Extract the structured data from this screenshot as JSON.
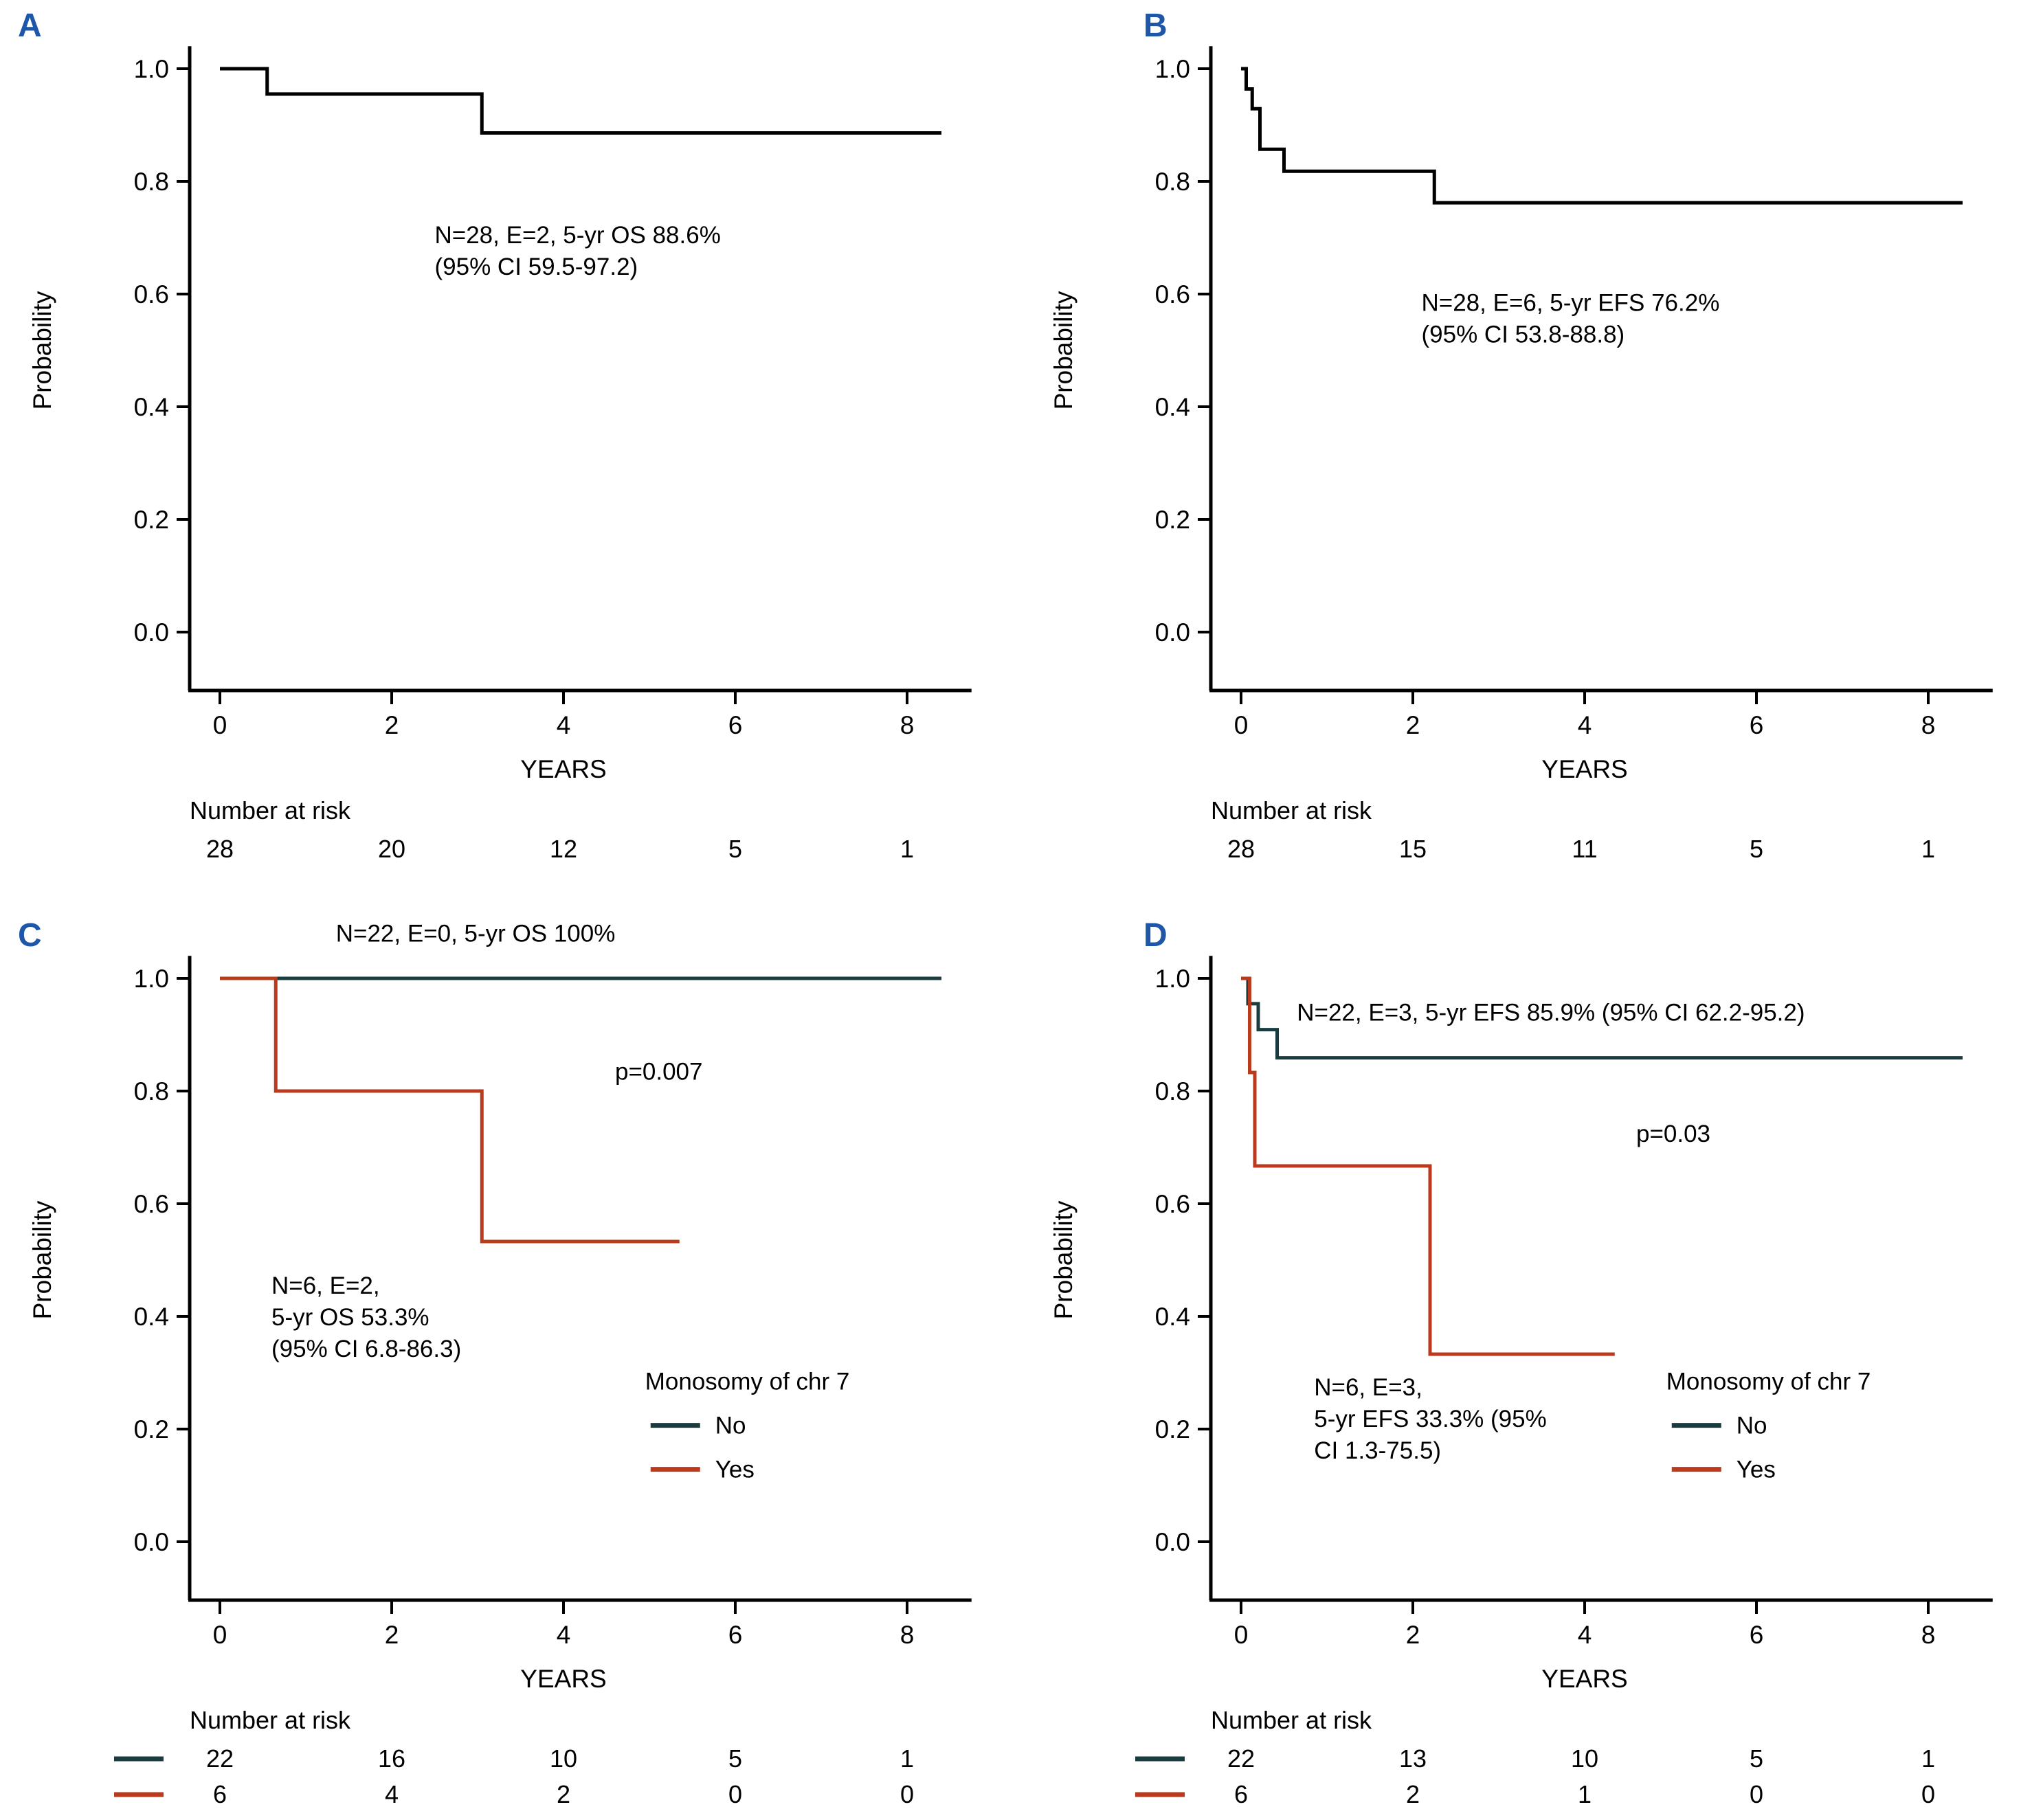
{
  "figure": {
    "background": "#ffffff",
    "panel_label_color": "#1f57a8",
    "black_curve_color": "#000000",
    "no_curve_color": "#1b3c3e",
    "yes_curve_color": "#b93a1d"
  },
  "chart_data": [
    {
      "type": "km_step",
      "panel": "A",
      "xlabel": "YEARS",
      "ylabel": "Probability",
      "xticks": [
        0,
        2,
        4,
        6,
        8
      ],
      "yticks": [
        "0.0",
        "0.2",
        "0.4",
        "0.6",
        "0.8",
        "1.0"
      ],
      "xlim": [
        -0.35,
        8.75
      ],
      "ylim": [
        0,
        1.04
      ],
      "grid": false,
      "series": [
        {
          "name": "overall-survival",
          "color": "#000000",
          "points": [
            [
              0,
              1.0
            ],
            [
              0.55,
              1.0
            ],
            [
              0.55,
              0.955
            ],
            [
              3.05,
              0.955
            ],
            [
              3.05,
              0.886
            ],
            [
              8.4,
              0.886
            ]
          ]
        }
      ],
      "annotations": [
        {
          "text": "N=28, E=2, 5-yr OS 88.6%\n(95% CI 59.5-97.2)",
          "x": 2.5,
          "y": 0.69
        }
      ],
      "risk_table": {
        "label": "Number at risk",
        "rows": [
          {
            "name": "all",
            "color": null,
            "values": [
              "28",
              "20",
              "12",
              "5",
              "1"
            ]
          }
        ]
      }
    },
    {
      "type": "km_step",
      "panel": "B",
      "xlabel": "YEARS",
      "ylabel": "Probability",
      "xticks": [
        0,
        2,
        4,
        6,
        8
      ],
      "yticks": [
        "0.0",
        "0.2",
        "0.4",
        "0.6",
        "0.8",
        "1.0"
      ],
      "xlim": [
        -0.35,
        8.75
      ],
      "ylim": [
        0,
        1.04
      ],
      "grid": false,
      "series": [
        {
          "name": "event-free-survival",
          "color": "#000000",
          "points": [
            [
              0,
              1.0
            ],
            [
              0.06,
              1.0
            ],
            [
              0.06,
              0.964
            ],
            [
              0.13,
              0.964
            ],
            [
              0.13,
              0.929
            ],
            [
              0.22,
              0.929
            ],
            [
              0.22,
              0.857
            ],
            [
              0.5,
              0.857
            ],
            [
              0.5,
              0.818
            ],
            [
              2.25,
              0.818
            ],
            [
              2.25,
              0.762
            ],
            [
              8.4,
              0.762
            ]
          ]
        }
      ],
      "annotations": [
        {
          "text": "N=28, E=6, 5-yr EFS 76.2%\n(95% CI 53.8-88.8)",
          "x": 2.1,
          "y": 0.57
        }
      ],
      "risk_table": {
        "label": "Number at risk",
        "rows": [
          {
            "name": "all",
            "color": null,
            "values": [
              "28",
              "15",
              "11",
              "5",
              "1"
            ]
          }
        ]
      }
    },
    {
      "type": "km_step",
      "panel": "C",
      "xlabel": "YEARS",
      "ylabel": "Probability",
      "xticks": [
        0,
        2,
        4,
        6,
        8
      ],
      "yticks": [
        "0.0",
        "0.2",
        "0.4",
        "0.6",
        "0.8",
        "1.0"
      ],
      "xlim": [
        -0.35,
        8.75
      ],
      "ylim": [
        0,
        1.04
      ],
      "grid": false,
      "series": [
        {
          "name": "no-monosomy-7",
          "color": "#1b3c3e",
          "points": [
            [
              0,
              1.0
            ],
            [
              8.4,
              1.0
            ]
          ]
        },
        {
          "name": "yes-monosomy-7",
          "color": "#b93a1d",
          "points": [
            [
              0,
              1.0
            ],
            [
              0.65,
              1.0
            ],
            [
              0.65,
              0.8
            ],
            [
              3.05,
              0.8
            ],
            [
              3.05,
              0.533
            ],
            [
              5.35,
              0.533
            ]
          ]
        }
      ],
      "annotations": [
        {
          "text": "N=22, E=0, 5-yr OS 100%",
          "x": 1.35,
          "y": 1.065
        },
        {
          "text": "p=0.007",
          "x": 4.6,
          "y": 0.82
        },
        {
          "text": "N=6, E=2,\n5-yr OS 53.3%\n(95% CI 6.8-86.3)",
          "x": 0.6,
          "y": 0.44
        }
      ],
      "legend": {
        "title": "Monosomy of chr 7",
        "x": 4.95,
        "y": 0.27,
        "items": [
          {
            "label": "No",
            "color": "#1b3c3e"
          },
          {
            "label": "Yes",
            "color": "#b93a1d"
          }
        ]
      },
      "risk_table": {
        "label": "Number at risk",
        "rows": [
          {
            "name": "No",
            "color": "#1b3c3e",
            "values": [
              "22",
              "16",
              "10",
              "5",
              "1"
            ]
          },
          {
            "name": "Yes",
            "color": "#b93a1d",
            "values": [
              "6",
              "4",
              "2",
              "0",
              "0"
            ]
          }
        ]
      }
    },
    {
      "type": "km_step",
      "panel": "D",
      "xlabel": "YEARS",
      "ylabel": "Probability",
      "xticks": [
        0,
        2,
        4,
        6,
        8
      ],
      "yticks": [
        "0.0",
        "0.2",
        "0.4",
        "0.6",
        "0.8",
        "1.0"
      ],
      "xlim": [
        -0.35,
        8.75
      ],
      "ylim": [
        0,
        1.04
      ],
      "grid": false,
      "series": [
        {
          "name": "no-monosomy-7",
          "color": "#1b3c3e",
          "points": [
            [
              0,
              1.0
            ],
            [
              0.08,
              1.0
            ],
            [
              0.08,
              0.955
            ],
            [
              0.2,
              0.955
            ],
            [
              0.2,
              0.909
            ],
            [
              0.42,
              0.909
            ],
            [
              0.42,
              0.859
            ],
            [
              8.4,
              0.859
            ]
          ]
        },
        {
          "name": "yes-monosomy-7",
          "color": "#b93a1d",
          "points": [
            [
              0,
              1.0
            ],
            [
              0.1,
              1.0
            ],
            [
              0.1,
              0.833
            ],
            [
              0.16,
              0.833
            ],
            [
              0.16,
              0.667
            ],
            [
              2.2,
              0.667
            ],
            [
              2.2,
              0.333
            ],
            [
              4.35,
              0.333
            ]
          ]
        }
      ],
      "annotations": [
        {
          "text": "N=22, E=3, 5-yr EFS 85.9% (95% CI 62.2-95.2)",
          "x": 0.65,
          "y": 0.925
        },
        {
          "text": "p=0.03",
          "x": 4.6,
          "y": 0.71
        },
        {
          "text": "N=6, E=3,\n5-yr EFS 33.3% (95%\nCI 1.3-75.5)",
          "x": 0.85,
          "y": 0.26
        }
      ],
      "legend": {
        "title": "Monosomy of chr 7",
        "x": 4.95,
        "y": 0.27,
        "items": [
          {
            "label": "No",
            "color": "#1b3c3e"
          },
          {
            "label": "Yes",
            "color": "#b93a1d"
          }
        ]
      },
      "risk_table": {
        "label": "Number at risk",
        "rows": [
          {
            "name": "No",
            "color": "#1b3c3e",
            "values": [
              "22",
              "13",
              "10",
              "5",
              "1"
            ]
          },
          {
            "name": "Yes",
            "color": "#b93a1d",
            "values": [
              "6",
              "2",
              "1",
              "0",
              "0"
            ]
          }
        ]
      }
    }
  ]
}
